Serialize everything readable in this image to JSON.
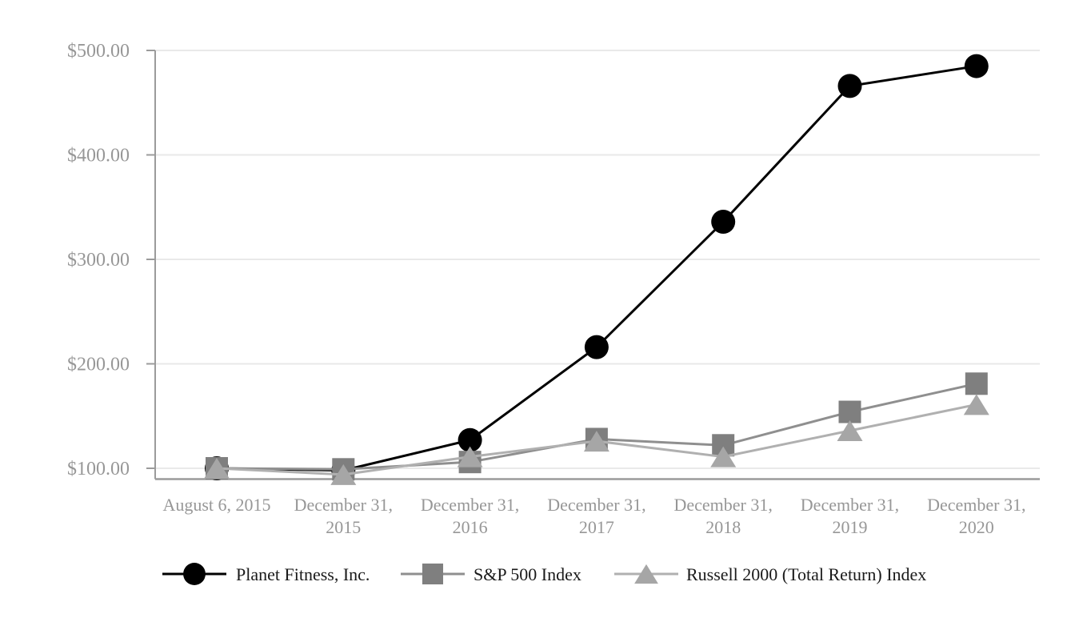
{
  "chart_data": {
    "type": "line",
    "title": "",
    "categories": [
      "August 6, 2015",
      "December 31, 2015",
      "December 31, 2016",
      "December 31, 2017",
      "December 31, 2018",
      "December 31, 2019",
      "December 31, 2020"
    ],
    "series": [
      {
        "name": "Planet Fitness, Inc.",
        "marker": "circle",
        "line_color": "#000000",
        "marker_color": "#000000",
        "values": [
          100,
          98,
          127,
          216,
          336,
          466,
          485
        ]
      },
      {
        "name": "S&P 500 Index",
        "marker": "square",
        "line_color": "#8F8F8F",
        "marker_color": "#7F7F7F",
        "values": [
          100,
          99,
          106,
          128,
          122,
          154,
          181
        ]
      },
      {
        "name": "Russell 2000 (Total Return) Index",
        "marker": "triangle",
        "line_color": "#B0B0B0",
        "marker_color": "#A6A6A6",
        "values": [
          100,
          94,
          111,
          126,
          111,
          136,
          161
        ]
      }
    ],
    "x_axis": {
      "tick_lines": [
        [
          "August 6, 2015"
        ],
        [
          "December 31,",
          "2015"
        ],
        [
          "December 31,",
          "2016"
        ],
        [
          "December 31,",
          "2017"
        ],
        [
          "December 31,",
          "2018"
        ],
        [
          "December 31,",
          "2019"
        ],
        [
          "December 31,",
          "2020"
        ]
      ]
    },
    "y_axis": {
      "ticks": [
        100,
        200,
        300,
        400,
        500
      ],
      "tick_labels": [
        "$100.00",
        "$200.00",
        "$300.00",
        "$400.00",
        "$500.00"
      ],
      "min": 90,
      "max": 500
    },
    "grid": "horizontal-only",
    "legend_position": "bottom",
    "colors": {
      "background": "#FFFFFF",
      "gridline": "#E9E9E9",
      "axis_line": "#9B9B9B",
      "tick_label": "#979797",
      "legend_text": "#1A1A1A"
    }
  }
}
